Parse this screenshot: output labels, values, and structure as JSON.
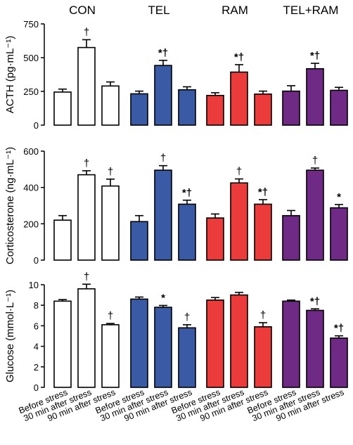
{
  "chart_data": {
    "type": "bar",
    "groups": [
      "CON",
      "TEL",
      "RAM",
      "TEL+RAM"
    ],
    "group_colors": [
      "#ffffff",
      "#3a5aa6",
      "#ec3b3b",
      "#6f2a86"
    ],
    "categories": [
      "Before stress",
      "30 min after stress",
      "90 min after stress"
    ],
    "panels": [
      {
        "ylabel": "ACTH (pg·mL⁻¹)",
        "ylim": [
          0,
          750
        ],
        "yticks": [
          "0",
          "250",
          "500",
          "750"
        ],
        "series": [
          {
            "group": "CON",
            "values": [
              245,
              575,
              290
            ],
            "errors": [
              22,
              58,
              30
            ],
            "marks": [
              "",
              "†",
              ""
            ]
          },
          {
            "group": "TEL",
            "values": [
              232,
              442,
              262
            ],
            "errors": [
              20,
              38,
              22
            ],
            "marks": [
              "",
              "*†",
              ""
            ]
          },
          {
            "group": "RAM",
            "values": [
              220,
              393,
              230
            ],
            "errors": [
              20,
              55,
              22
            ],
            "marks": [
              "",
              "*†",
              ""
            ]
          },
          {
            "group": "TEL+RAM",
            "values": [
              252,
              418,
              258
            ],
            "errors": [
              40,
              40,
              22
            ],
            "marks": [
              "",
              "*†",
              ""
            ]
          }
        ]
      },
      {
        "ylabel": "Corticosterone (ng·mL⁻¹)",
        "ylim": [
          0,
          600
        ],
        "yticks": [
          "0",
          "200",
          "400",
          "600"
        ],
        "series": [
          {
            "group": "CON",
            "values": [
              220,
              470,
              408
            ],
            "errors": [
              25,
              22,
              38
            ],
            "marks": [
              "",
              "†",
              "†"
            ]
          },
          {
            "group": "TEL",
            "values": [
              212,
              495,
              308
            ],
            "errors": [
              33,
              25,
              22
            ],
            "marks": [
              "",
              "†",
              "*†"
            ]
          },
          {
            "group": "RAM",
            "values": [
              232,
              425,
              308
            ],
            "errors": [
              22,
              22,
              25
            ],
            "marks": [
              "",
              "†",
              "*†"
            ]
          },
          {
            "group": "TEL+RAM",
            "values": [
              245,
              495,
              288
            ],
            "errors": [
              28,
              12,
              18
            ],
            "marks": [
              "",
              "†",
              "*"
            ]
          }
        ]
      },
      {
        "ylabel": "Glucose (mmol·L⁻¹)",
        "ylim": [
          0,
          10
        ],
        "yticks": [
          "0",
          "2",
          "4",
          "6",
          "8",
          "10"
        ],
        "series": [
          {
            "group": "CON",
            "values": [
              8.4,
              9.6,
              6.1
            ],
            "errors": [
              0.15,
              0.45,
              0.12
            ],
            "marks": [
              "",
              "†",
              "†"
            ]
          },
          {
            "group": "TEL",
            "values": [
              8.6,
              7.8,
              5.8
            ],
            "errors": [
              0.2,
              0.18,
              0.3
            ],
            "marks": [
              "",
              "*",
              "†"
            ]
          },
          {
            "group": "RAM",
            "values": [
              8.5,
              9.0,
              5.9
            ],
            "errors": [
              0.25,
              0.25,
              0.4
            ],
            "marks": [
              "",
              "",
              "†"
            ]
          },
          {
            "group": "TEL+RAM",
            "values": [
              8.4,
              7.5,
              4.8
            ],
            "errors": [
              0.1,
              0.15,
              0.22
            ],
            "marks": [
              "",
              "*†",
              "*†"
            ]
          }
        ]
      }
    ]
  }
}
